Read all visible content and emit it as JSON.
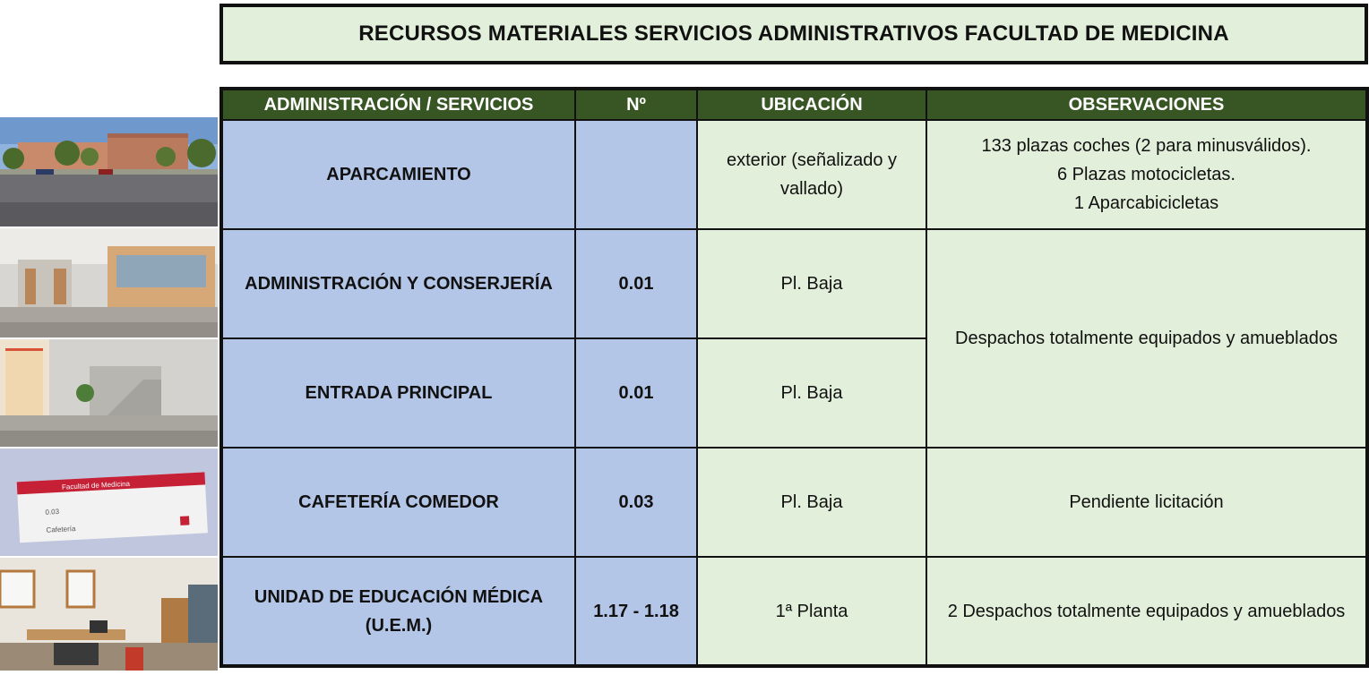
{
  "title": "RECURSOS MATERIALES SERVICIOS ADMINISTRATIVOS FACULTAD DE MEDICINA",
  "headers": {
    "service": "ADMINISTRACIÓN / SERVICIOS",
    "number": "Nº",
    "location": "UBICACIÓN",
    "observations": "OBSERVACIONES"
  },
  "rows": [
    {
      "service": "APARCAMIENTO",
      "number": "",
      "location": "exterior (señalizado y vallado)",
      "observations": [
        "133 plazas coches (2 para minusválidos).",
        "6 Plazas motocicletas.",
        "1 Aparcabicicletas"
      ]
    },
    {
      "service": "ADMINISTRACIÓN Y CONSERJERÍA",
      "number": "0.01",
      "location": "Pl. Baja",
      "observations": [
        "Despachos totalmente equipados y amueblados"
      ]
    },
    {
      "service": "ENTRADA PRINCIPAL",
      "number": "0.01",
      "location": "Pl. Baja"
    },
    {
      "service": "CAFETERÍA COMEDOR",
      "number": "0.03",
      "location": "Pl. Baja",
      "observations": [
        "Pendiente licitación"
      ]
    },
    {
      "service": "UNIDAD DE EDUCACIÓN MÉDICA (U.E.M.)",
      "number": "1.17 - 1.18",
      "location": "1ª Planta",
      "observations": [
        "2 Despachos totalmente equipados y amueblados"
      ]
    }
  ],
  "sign": {
    "line1": "Facultad de Medicina",
    "line2": "0.03",
    "line3": "Cafetería"
  }
}
